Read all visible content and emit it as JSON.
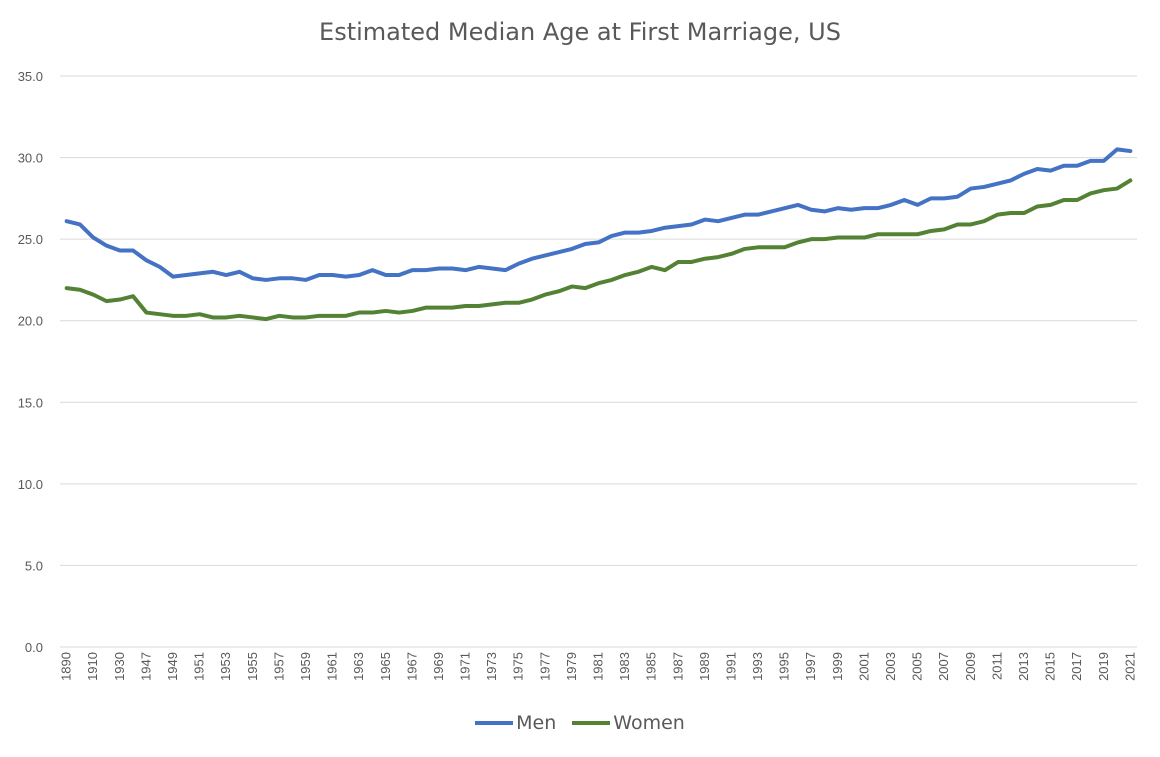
{
  "chart_data": {
    "type": "line",
    "title": "Estimated Median Age at First Marriage, US",
    "xlabel": "",
    "ylabel": "",
    "ylim": [
      0,
      35
    ],
    "yticks": [
      "0.0",
      "5.0",
      "10.0",
      "15.0",
      "20.0",
      "25.0",
      "30.0",
      "35.0"
    ],
    "grid": true,
    "legend_position": "bottom",
    "categories": [
      "1890",
      "1900",
      "1910",
      "1920",
      "1930",
      "1940",
      "1947",
      "1948",
      "1949",
      "1950",
      "1951",
      "1952",
      "1953",
      "1954",
      "1955",
      "1956",
      "1957",
      "1958",
      "1959",
      "1960",
      "1961",
      "1962",
      "1963",
      "1964",
      "1965",
      "1966",
      "1967",
      "1968",
      "1969",
      "1970",
      "1971",
      "1972",
      "1973",
      "1974",
      "1975",
      "1976",
      "1977",
      "1978",
      "1979",
      "1980",
      "1981",
      "1982",
      "1983",
      "1984",
      "1985",
      "1986",
      "1987",
      "1988",
      "1989",
      "1990",
      "1991",
      "1992",
      "1993",
      "1994",
      "1995",
      "1996",
      "1997",
      "1998",
      "1999",
      "2000",
      "2001",
      "2002",
      "2003",
      "2004",
      "2005",
      "2006",
      "2007",
      "2008",
      "2009",
      "2010",
      "2011",
      "2012",
      "2013",
      "2014",
      "2015",
      "2016",
      "2017",
      "2018",
      "2019",
      "2020",
      "2021"
    ],
    "tick_labels": [
      "1890",
      "1910",
      "1930",
      "1947",
      "1949",
      "1951",
      "1953",
      "1955",
      "1957",
      "1959",
      "1961",
      "1963",
      "1965",
      "1967",
      "1969",
      "1971",
      "1973",
      "1975",
      "1977",
      "1979",
      "1981",
      "1983",
      "1985",
      "1987",
      "1989",
      "1991",
      "1993",
      "1995",
      "1997",
      "1999",
      "2001",
      "2003",
      "2005",
      "2007",
      "2009",
      "2011",
      "2013",
      "2015",
      "2017",
      "2019",
      "2021"
    ],
    "series": [
      {
        "name": "Men",
        "color": "#4472c4",
        "values": [
          26.1,
          25.9,
          25.1,
          24.6,
          24.3,
          24.3,
          23.7,
          23.3,
          22.7,
          22.8,
          22.9,
          23.0,
          22.8,
          23.0,
          22.6,
          22.5,
          22.6,
          22.6,
          22.5,
          22.8,
          22.8,
          22.7,
          22.8,
          23.1,
          22.8,
          22.8,
          23.1,
          23.1,
          23.2,
          23.2,
          23.1,
          23.3,
          23.2,
          23.1,
          23.5,
          23.8,
          24.0,
          24.2,
          24.4,
          24.7,
          24.8,
          25.2,
          25.4,
          25.4,
          25.5,
          25.7,
          25.8,
          25.9,
          26.2,
          26.1,
          26.3,
          26.5,
          26.5,
          26.7,
          26.9,
          27.1,
          26.8,
          26.7,
          26.9,
          26.8,
          26.9,
          26.9,
          27.1,
          27.4,
          27.1,
          27.5,
          27.5,
          27.6,
          28.1,
          28.2,
          28.4,
          28.6,
          29.0,
          29.3,
          29.2,
          29.5,
          29.5,
          29.8,
          29.8,
          30.5,
          30.4
        ]
      },
      {
        "name": "Women",
        "color": "#548235",
        "values": [
          22.0,
          21.9,
          21.6,
          21.2,
          21.3,
          21.5,
          20.5,
          20.4,
          20.3,
          20.3,
          20.4,
          20.2,
          20.2,
          20.3,
          20.2,
          20.1,
          20.3,
          20.2,
          20.2,
          20.3,
          20.3,
          20.3,
          20.5,
          20.5,
          20.6,
          20.5,
          20.6,
          20.8,
          20.8,
          20.8,
          20.9,
          20.9,
          21.0,
          21.1,
          21.1,
          21.3,
          21.6,
          21.8,
          22.1,
          22.0,
          22.3,
          22.5,
          22.8,
          23.0,
          23.3,
          23.1,
          23.6,
          23.6,
          23.8,
          23.9,
          24.1,
          24.4,
          24.5,
          24.5,
          24.5,
          24.8,
          25.0,
          25.0,
          25.1,
          25.1,
          25.1,
          25.3,
          25.3,
          25.3,
          25.3,
          25.5,
          25.6,
          25.9,
          25.9,
          26.1,
          26.5,
          26.6,
          26.6,
          27.0,
          27.1,
          27.4,
          27.4,
          27.8,
          28.0,
          28.1,
          28.6
        ]
      }
    ]
  }
}
